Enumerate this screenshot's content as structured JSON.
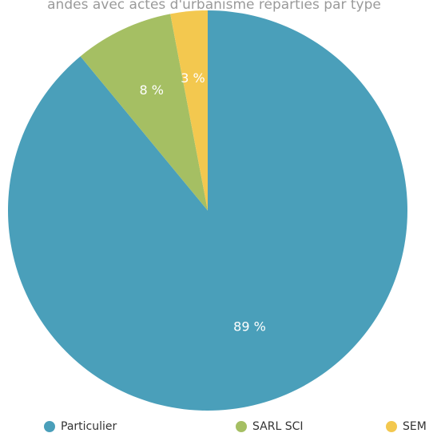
{
  "chart_data": {
    "type": "pie",
    "title": "andes avec actes d'urbanisme réparties par type",
    "categories": [
      "Particulier",
      "SARL SCI",
      "SEM"
    ],
    "values": [
      89,
      8,
      3
    ],
    "value_labels": [
      "89 %",
      "8 %",
      "3 %"
    ],
    "colors": [
      "#4a9fba",
      "#a5bf63",
      "#f3c84f"
    ],
    "legend": "bottom"
  }
}
